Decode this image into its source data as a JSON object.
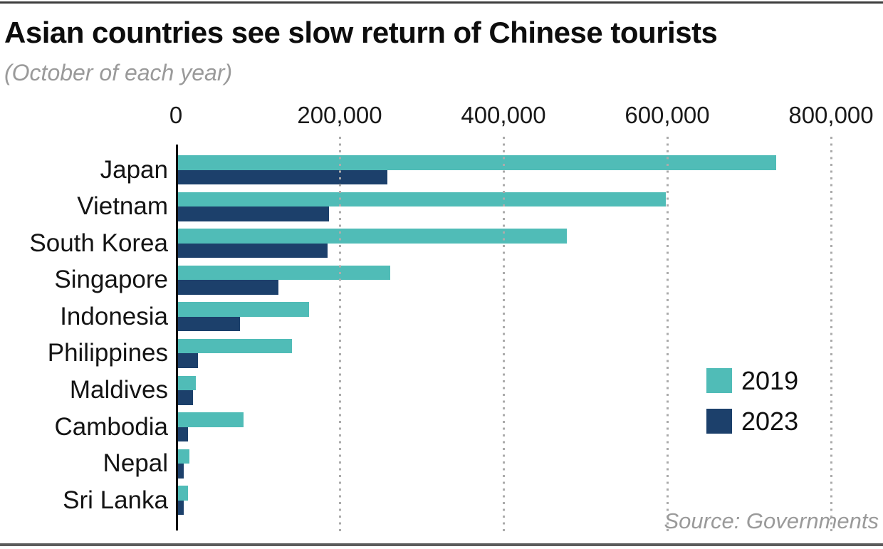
{
  "header": {
    "title": "Asian countries see slow return of Chinese tourists",
    "subtitle": "(October of each year)"
  },
  "source": "Source: Governments",
  "colors": {
    "series_2019": "#50bcb7",
    "series_2023": "#1c406b",
    "grid": "#ababab",
    "axis": "#0a0a0a",
    "rule_top": "#3d3d3d",
    "rule_bottom": "#5c5c5c",
    "muted_text": "#9a9a9a",
    "text": "#141414"
  },
  "chart_data": {
    "type": "bar",
    "orientation": "horizontal",
    "title": "Asian countries see slow return of Chinese tourists",
    "subtitle": "(October of each year)",
    "categories": [
      "Japan",
      "Vietnam",
      "South Korea",
      "Singapore",
      "Indonesia",
      "Philippines",
      "Maldives",
      "Cambodia",
      "Nepal",
      "Sri Lanka"
    ],
    "series": [
      {
        "name": "2019",
        "color": "#50bcb7",
        "values": [
          730000,
          596000,
          475000,
          259000,
          160000,
          139000,
          22000,
          80000,
          13500,
          12500
        ]
      },
      {
        "name": "2023",
        "color": "#1c406b",
        "values": [
          256000,
          184000,
          183000,
          123000,
          76000,
          24000,
          18000,
          12500,
          7000,
          7000
        ]
      }
    ],
    "x_axis": {
      "ticks": [
        0,
        200000,
        400000,
        600000,
        800000
      ],
      "tick_labels": [
        "0",
        "200,000",
        "400,000",
        "600,000",
        "800,000"
      ],
      "range": [
        0,
        863000
      ]
    },
    "grid": "dotted-vertical",
    "legend_position": "middle-right",
    "legend_entries": [
      "2019",
      "2023"
    ],
    "source": "Source: Governments"
  }
}
